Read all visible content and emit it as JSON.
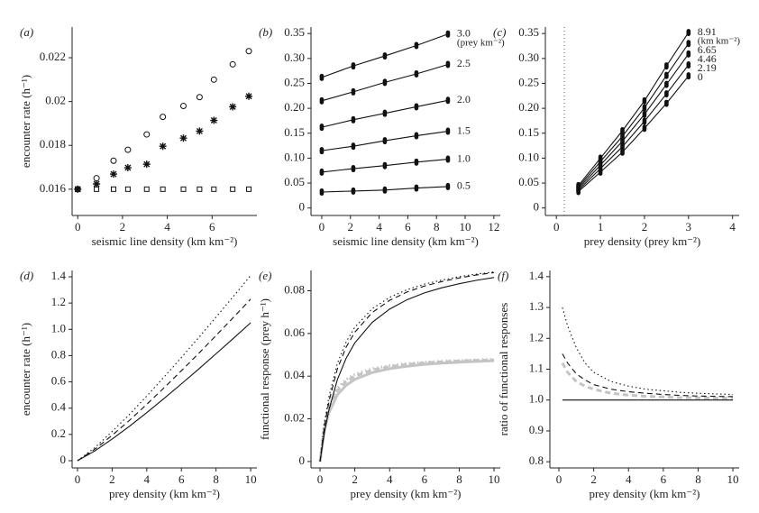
{
  "chart_data": [
    {
      "type": "scatter",
      "label": "(a)",
      "xlabel": "seismic line density (km km⁻²)",
      "ylabel": "encounter rate (h⁻¹)",
      "x": [
        0,
        0.84,
        1.6,
        2.24,
        3.08,
        3.8,
        4.72,
        5.44,
        6.08,
        6.92,
        7.64
      ],
      "series": [
        {
          "marker": "circle",
          "color": "#111111",
          "values": [
            0.016,
            0.0165,
            0.0173,
            0.0178,
            0.0185,
            0.0193,
            0.0198,
            0.0202,
            0.021,
            0.0217,
            0.0223
          ]
        },
        {
          "marker": "star",
          "color": "#111111",
          "values": [
            0.016,
            0.01624,
            0.01669,
            0.01698,
            0.01714,
            0.01796,
            0.01833,
            0.01865,
            0.01914,
            0.01976,
            0.02024
          ]
        },
        {
          "marker": "square",
          "color": "#111111",
          "values": [
            0.016,
            0.016,
            0.016,
            0.016,
            0.016,
            0.016,
            0.016,
            0.016,
            0.016,
            0.016,
            0.016
          ]
        }
      ],
      "xlim": [
        -0.25,
        8.0
      ],
      "ylim": [
        0.0148,
        0.0234
      ],
      "xticks": [
        0,
        2,
        4,
        6
      ],
      "yticks": [
        0.016,
        0.018,
        0.02,
        0.022
      ]
    },
    {
      "type": "line",
      "label": "(b)",
      "xlabel": "seismic line density (km km⁻²)",
      "unit_note": "(prey km⁻²)",
      "x": [
        0,
        2.2,
        4.4,
        6.6,
        8.8
      ],
      "series": [
        {
          "name": "3.0",
          "marker": "dot",
          "color": "#111111",
          "values": [
            0.262,
            0.285,
            0.305,
            0.326,
            0.349
          ]
        },
        {
          "name": "2.5",
          "marker": "dot",
          "color": "#111111",
          "values": [
            0.215,
            0.233,
            0.252,
            0.269,
            0.288
          ]
        },
        {
          "name": "2.0",
          "marker": "dot",
          "color": "#111111",
          "values": [
            0.162,
            0.177,
            0.19,
            0.203,
            0.216
          ]
        },
        {
          "name": "1.5",
          "marker": "dot",
          "color": "#111111",
          "values": [
            0.115,
            0.124,
            0.135,
            0.145,
            0.154
          ]
        },
        {
          "name": "1.0",
          "marker": "dot",
          "color": "#111111",
          "values": [
            0.072,
            0.079,
            0.085,
            0.092,
            0.098
          ]
        },
        {
          "name": "0.5",
          "marker": "dot",
          "color": "#111111",
          "values": [
            0.032,
            0.034,
            0.036,
            0.04,
            0.043
          ]
        }
      ],
      "xlim": [
        -0.75,
        12.45
      ],
      "ylim": [
        -0.015,
        0.363
      ],
      "xticks": [
        0,
        2,
        4,
        6,
        8,
        10,
        12
      ],
      "yticks": [
        0,
        0.05,
        {
          "value": 0.1,
          "label": "0.10"
        },
        0.15,
        {
          "value": 0.2,
          "label": "0.20"
        },
        0.25,
        {
          "value": 0.3,
          "label": "0.30"
        },
        0.35
      ]
    },
    {
      "type": "line",
      "label": "(c)",
      "xlabel": "prey density (prey km⁻²)",
      "unit_note": "(km km⁻²)",
      "vline": 0.18,
      "x": [
        0.5,
        1,
        1.5,
        2,
        2.5,
        3
      ],
      "series": [
        {
          "name": "8.91",
          "marker": "dot",
          "color": "#111111",
          "values": [
            0.045,
            0.1,
            0.155,
            0.215,
            0.285,
            0.352
          ]
        },
        {
          "name": "6.65",
          "marker": "dot",
          "color": "#111111",
          "values": [
            0.042,
            0.093,
            0.144,
            0.201,
            0.266,
            0.33
          ]
        },
        {
          "name": "4.46",
          "marker": "dot",
          "color": "#111111",
          "values": [
            0.039,
            0.086,
            0.134,
            0.188,
            0.248,
            0.309
          ]
        },
        {
          "name": "2.19",
          "marker": "dot",
          "color": "#111111",
          "values": [
            0.036,
            0.079,
            0.123,
            0.174,
            0.229,
            0.287
          ]
        },
        {
          "name": "0",
          "marker": "dot",
          "color": "#111111",
          "values": [
            0.033,
            0.072,
            0.112,
            0.16,
            0.21,
            0.265
          ]
        }
      ],
      "xlim": [
        -0.25,
        4.15
      ],
      "ylim": [
        -0.015,
        0.363
      ],
      "xticks": [
        0,
        1,
        2,
        3,
        4
      ],
      "yticks": [
        0,
        0.05,
        {
          "value": 0.1,
          "label": "0.10"
        },
        0.15,
        {
          "value": 0.2,
          "label": "0.20"
        },
        0.25,
        {
          "value": 0.3,
          "label": "0.30"
        },
        0.35
      ]
    },
    {
      "type": "line",
      "label": "(d)",
      "xlabel": "prey density (km km⁻²)",
      "ylabel": "encounter rate (h⁻¹)",
      "x": [
        0,
        1,
        2,
        3,
        4,
        5,
        6,
        7,
        8,
        9,
        10
      ],
      "series": [
        {
          "dash": "solid",
          "color": "#111111",
          "values": [
            0,
            0.074,
            0.165,
            0.262,
            0.366,
            0.474,
            0.585,
            0.698,
            0.814,
            0.931,
            1.05
          ]
        },
        {
          "dash": "dashed",
          "color": "#111111",
          "values": [
            0,
            0.087,
            0.193,
            0.307,
            0.429,
            0.555,
            0.685,
            0.817,
            0.953,
            1.09,
            1.23
          ]
        },
        {
          "dash": "dotted",
          "color": "#111111",
          "values": [
            0,
            0.099,
            0.222,
            0.352,
            0.492,
            0.637,
            0.786,
            0.937,
            1.093,
            1.25,
            1.41
          ]
        }
      ],
      "xlim": [
        -0.31,
        10.36
      ],
      "ylim": [
        -0.055,
        1.448
      ],
      "xticks": [
        0,
        2,
        4,
        6,
        8,
        10
      ],
      "yticks": [
        0,
        0.2,
        0.4,
        0.6,
        0.8,
        {
          "value": 1,
          "label": "1.0"
        },
        1.2,
        1.4
      ]
    },
    {
      "type": "line",
      "label": "(e)",
      "xlabel": "prey density (km km⁻²)",
      "ylabel": "functional response (prey h⁻¹)",
      "x": [
        0,
        0.25,
        0.5,
        1,
        1.5,
        2,
        3,
        4,
        5,
        6,
        7,
        8,
        9,
        10
      ],
      "series": [
        {
          "dash": "solid",
          "stroke": "thick",
          "color": "#c4c4c4",
          "values": [
            0,
            0.0147,
            0.0227,
            0.0313,
            0.0357,
            0.0385,
            0.0417,
            0.0435,
            0.0446,
            0.0455,
            0.0461,
            0.0465,
            0.0469,
            0.0472
          ]
        },
        {
          "dash": "dashed",
          "stroke": "thick",
          "color": "#c4c4c4",
          "values": [
            0,
            0.0167,
            0.025,
            0.0333,
            0.0375,
            0.04,
            0.0429,
            0.0444,
            0.0455,
            0.0462,
            0.0467,
            0.0471,
            0.0474,
            0.0476
          ]
        },
        {
          "dash": "dotted",
          "stroke": "thick",
          "color": "#c4c4c4",
          "values": [
            0,
            0.0179,
            0.0263,
            0.0345,
            0.0385,
            0.0408,
            0.0435,
            0.0449,
            0.0459,
            0.0465,
            0.047,
            0.0473,
            0.0476,
            0.0479
          ]
        },
        {
          "dash": "solid",
          "color": "#111111",
          "values": [
            0,
            0.0135,
            0.0238,
            0.0385,
            0.0484,
            0.0556,
            0.0652,
            0.0714,
            0.0758,
            0.079,
            0.0814,
            0.0833,
            0.0849,
            0.0862
          ]
        },
        {
          "dash": "dashed",
          "color": "#111111",
          "values": [
            0,
            0.0161,
            0.0278,
            0.0435,
            0.0536,
            0.0606,
            0.0698,
            0.0755,
            0.0794,
            0.0822,
            0.0843,
            0.086,
            0.0874,
            0.0885
          ]
        },
        {
          "dash": "dotted",
          "color": "#111111",
          "values": [
            0,
            0.0177,
            0.03,
            0.0461,
            0.056,
            0.0629,
            0.0716,
            0.0769,
            0.0805,
            0.0831,
            0.085,
            0.0866,
            0.0878,
            0.0888
          ]
        }
      ],
      "xlim": [
        -0.52,
        10.36
      ],
      "ylim": [
        -0.003,
        0.0895
      ],
      "xticks": [
        0,
        2,
        4,
        6,
        8,
        10
      ],
      "yticks": [
        0,
        0.02,
        0.04,
        0.06,
        0.08
      ]
    },
    {
      "type": "line",
      "label": "(f)",
      "xlabel": "prey density (km km⁻²)",
      "ylabel": "ratio of functional responses",
      "x": [
        0.2,
        0.5,
        1,
        1.5,
        2,
        3,
        4,
        5,
        6,
        7,
        8,
        9,
        10
      ],
      "series": [
        {
          "dash": "dashed",
          "stroke": "thick",
          "color": "#c4c4c4",
          "values": [
            1.12,
            1.09,
            1.06,
            1.045,
            1.035,
            1.022,
            1.016,
            1.012,
            1.01,
            1.008,
            1.007,
            1.006,
            1.005
          ]
        },
        {
          "dash": "solid",
          "color": "#111111",
          "values": [
            1,
            1,
            1,
            1,
            1,
            1,
            1,
            1,
            1,
            1,
            1,
            1,
            1
          ]
        },
        {
          "dash": "dashed",
          "color": "#111111",
          "values": [
            1.15,
            1.12,
            1.085,
            1.065,
            1.05,
            1.035,
            1.027,
            1.022,
            1.018,
            1.015,
            1.013,
            1.012,
            1.011
          ]
        },
        {
          "dash": "dotted",
          "color": "#111111",
          "values": [
            1.3,
            1.24,
            1.17,
            1.12,
            1.09,
            1.06,
            1.045,
            1.035,
            1.03,
            1.025,
            1.022,
            1.02,
            1.018
          ]
        }
      ],
      "xlim": [
        -0.52,
        10.36
      ],
      "ylim": [
        0.78,
        1.42
      ],
      "xticks": [
        0,
        2,
        4,
        6,
        8,
        10
      ],
      "yticks": [
        0.8,
        0.9,
        {
          "value": 1,
          "label": "1.0"
        },
        1.1,
        1.2,
        1.3,
        1.4
      ]
    }
  ]
}
